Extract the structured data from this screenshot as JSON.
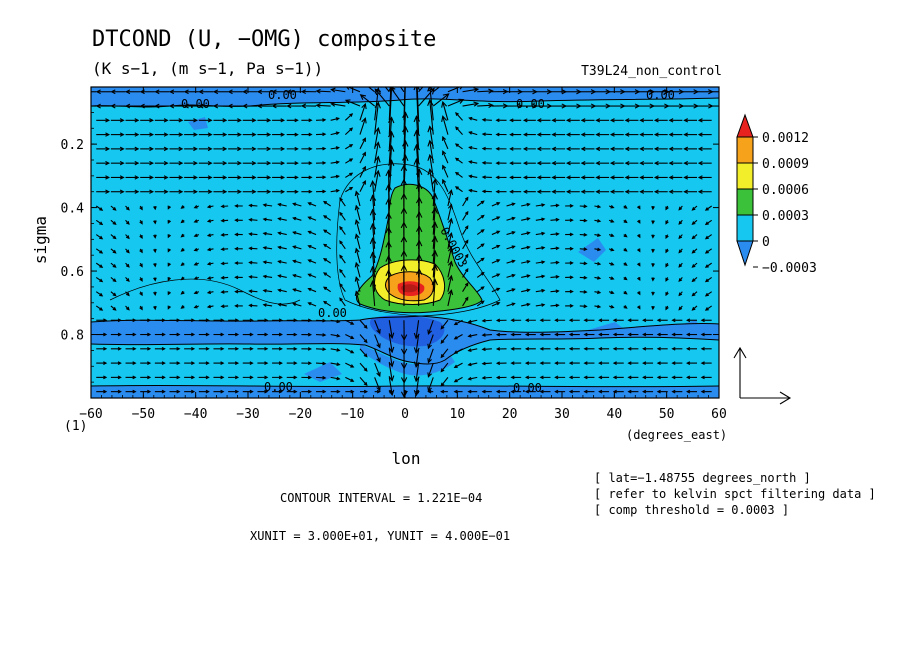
{
  "chart_data": {
    "type": "heatmap",
    "title": "DTCOND (U, −OMG) composite",
    "subtitle": "(K s−1, (m s−1, Pa s−1))",
    "run_label": "T39L24_non_control",
    "xlabel": "lon",
    "x_unit_label": "(degrees_east)",
    "ylabel": "sigma",
    "x_ticks": [
      "−60",
      "−50",
      "−40",
      "−30",
      "−20",
      "−10",
      "0",
      "10",
      "20",
      "30",
      "40",
      "50",
      "60"
    ],
    "y_ticks": [
      "0.2",
      "0.4",
      "0.6",
      "0.8"
    ],
    "y_corner_label": "(1)",
    "xlim": [
      -60,
      60
    ],
    "ylim": [
      1.0,
      0.02
    ],
    "contour_labels": [
      "0.00",
      "0.00",
      "0.00",
      "0.00",
      "0.00",
      "0.00",
      "0.00",
      "0.0003",
      "0.00"
    ],
    "colorbar": {
      "labels": [
        "0.0012",
        "0.0009",
        "0.0006",
        "0.0003",
        "0",
        "−0.0003"
      ],
      "colors": [
        "#e8231f",
        "#f7a21b",
        "#f2ee2a",
        "#3bc23a",
        "#16c8f0",
        "#2b8cf0"
      ]
    },
    "notes": {
      "contour_interval": "CONTOUR INTERVAL = 1.221E−04",
      "units": "XUNIT = 3.000E+01, YUNIT = 4.000E−01",
      "lat": "[ lat=−1.48755 degrees_north ]",
      "refer": "[ refer to kelvin spct filtering data ]",
      "threshold": "[ comp threshold = 0.0003 ]"
    },
    "field": {
      "background_level": "0",
      "anomalies": [
        {
          "lon": 0,
          "sigma": 0.66,
          "value": 0.0012
        },
        {
          "lon": 2,
          "sigma": 0.48,
          "value": 0.0006
        },
        {
          "lon": 1,
          "sigma": 0.82,
          "value": -0.0003
        },
        {
          "lon": 0,
          "sigma": 0.04,
          "value": -0.0003
        }
      ]
    }
  }
}
